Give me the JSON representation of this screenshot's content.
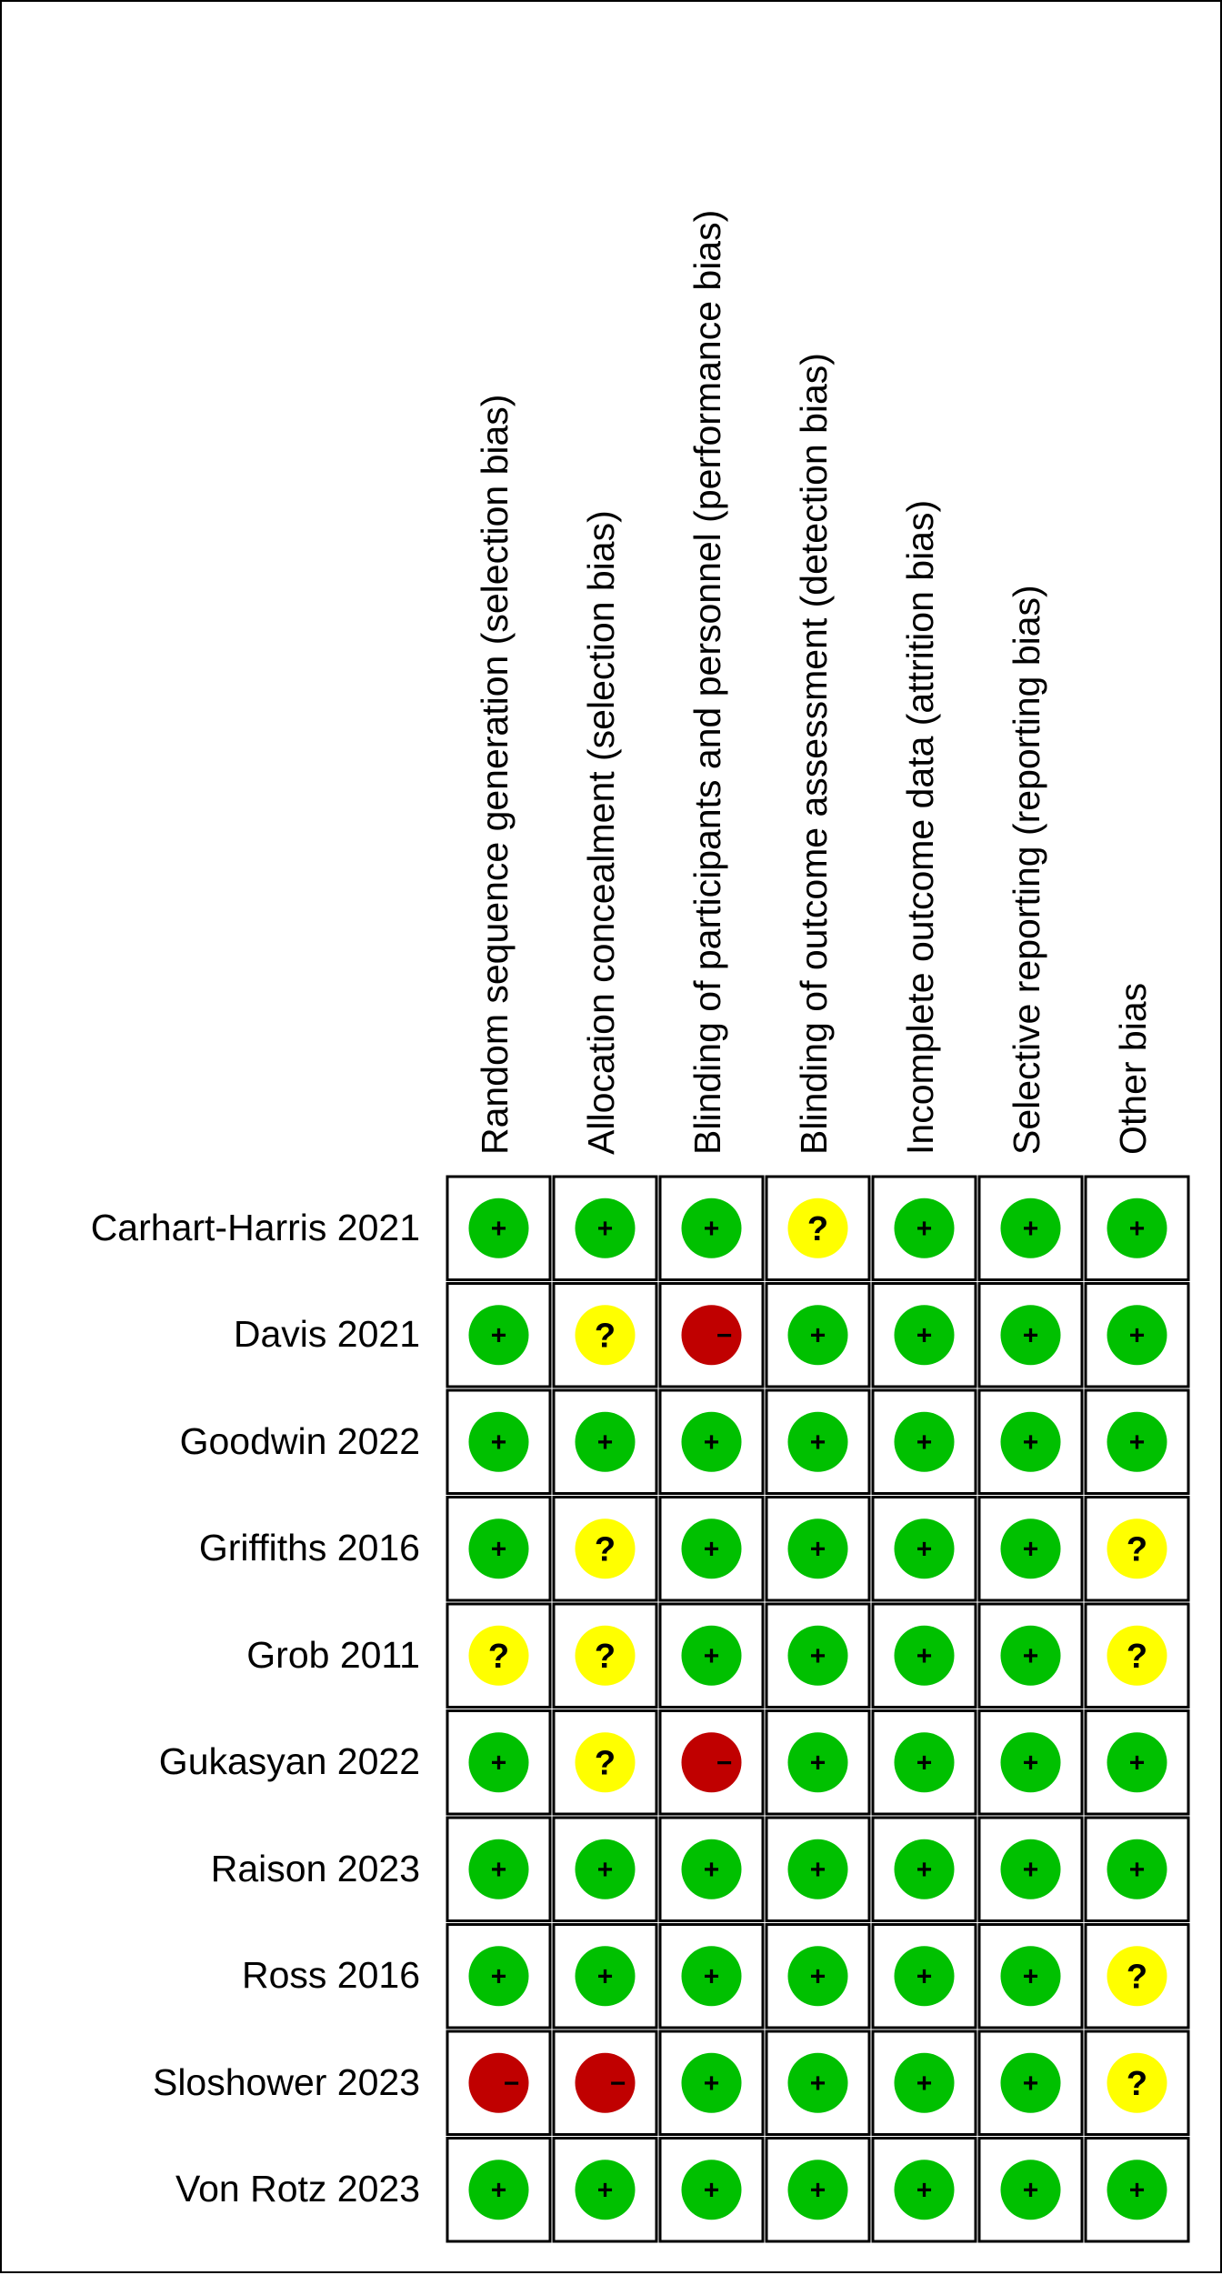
{
  "chart_data": {
    "type": "table",
    "columns": [
      "Random sequence generation (selection bias)",
      "Allocation concealment (selection bias)",
      "Blinding of participants and personnel (performance bias)",
      "Blinding of outcome assessment (detection bias)",
      "Incomplete outcome data (attrition bias)",
      "Selective reporting (reporting bias)",
      "Other bias"
    ],
    "rows": [
      {
        "study": "Carhart-Harris 2021",
        "ratings": [
          "low",
          "low",
          "low",
          "unclear",
          "low",
          "low",
          "low"
        ]
      },
      {
        "study": "Davis 2021",
        "ratings": [
          "low",
          "unclear",
          "high",
          "low",
          "low",
          "low",
          "low"
        ]
      },
      {
        "study": "Goodwin 2022",
        "ratings": [
          "low",
          "low",
          "low",
          "low",
          "low",
          "low",
          "low"
        ]
      },
      {
        "study": "Griffiths 2016",
        "ratings": [
          "low",
          "unclear",
          "low",
          "low",
          "low",
          "low",
          "unclear"
        ]
      },
      {
        "study": "Grob 2011",
        "ratings": [
          "unclear",
          "unclear",
          "low",
          "low",
          "low",
          "low",
          "unclear"
        ]
      },
      {
        "study": "Gukasyan 2022",
        "ratings": [
          "low",
          "unclear",
          "high",
          "low",
          "low",
          "low",
          "low"
        ]
      },
      {
        "study": "Raison  2023",
        "ratings": [
          "low",
          "low",
          "low",
          "low",
          "low",
          "low",
          "low"
        ]
      },
      {
        "study": "Ross 2016",
        "ratings": [
          "low",
          "low",
          "low",
          "low",
          "low",
          "low",
          "unclear"
        ]
      },
      {
        "study": "Sloshower 2023",
        "ratings": [
          "high",
          "high",
          "low",
          "low",
          "low",
          "low",
          "unclear"
        ]
      },
      {
        "study": "Von Rotz 2023",
        "ratings": [
          "low",
          "low",
          "low",
          "low",
          "low",
          "low",
          "low"
        ]
      }
    ],
    "symbols": {
      "low": "+",
      "unclear": "?",
      "high": "−"
    },
    "colors": {
      "low": "#00c000",
      "unclear": "#ffff00",
      "high": "#c00000"
    }
  }
}
